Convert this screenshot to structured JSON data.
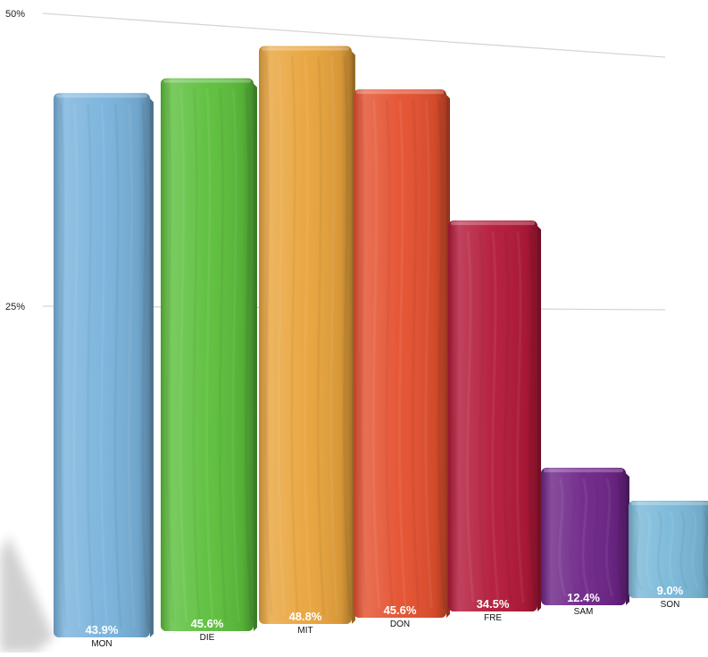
{
  "chart_data": {
    "type": "bar",
    "title": "",
    "xlabel": "",
    "ylabel": "",
    "ylim": [
      0,
      50
    ],
    "yticks": [
      {
        "value": 50,
        "label": "50%"
      },
      {
        "value": 25,
        "label": "25%"
      }
    ],
    "categories": [
      "MON",
      "DIE",
      "MIT",
      "DON",
      "FRE",
      "SAM",
      "SON"
    ],
    "values": [
      43.9,
      45.6,
      48.8,
      45.6,
      34.5,
      12.4,
      9.0
    ],
    "value_labels": [
      "43.9%",
      "45.6%",
      "48.8%",
      "45.6%",
      "34.5%",
      "12.4%",
      "9.0%"
    ],
    "colors": [
      "#79b3dc",
      "#5cbf3c",
      "#e9a43c",
      "#e4502e",
      "#b31939",
      "#6e2588",
      "#79b8d8"
    ],
    "grid": true,
    "legend": "none"
  }
}
